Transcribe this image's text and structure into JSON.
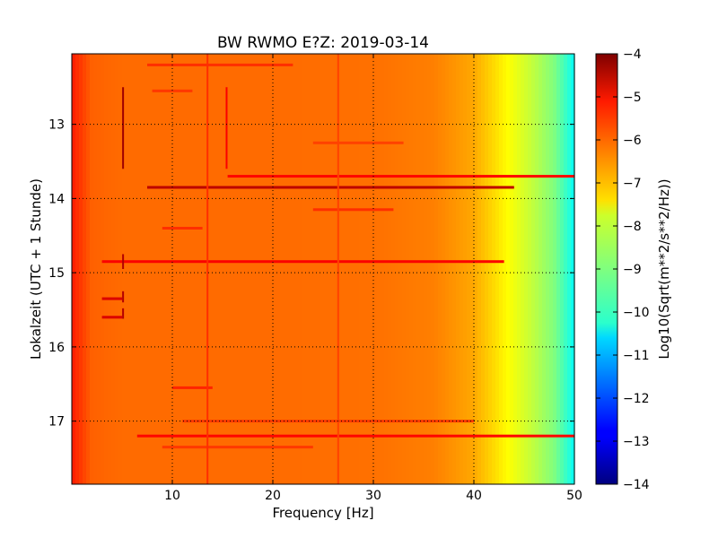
{
  "chart_data": {
    "type": "heatmap",
    "title": "BW RWMO E?Z: 2019-03-14",
    "xlabel": "Frequency [Hz]",
    "ylabel": "Lokalzeit (UTC + 1 Stunde)",
    "xlim": [
      0,
      50
    ],
    "ylim": [
      12.05,
      17.85
    ],
    "y_inverted": true,
    "x_ticks": [
      10,
      20,
      30,
      40,
      50
    ],
    "y_ticks": [
      13,
      14,
      15,
      16,
      17
    ],
    "grid": true,
    "colormap": "jet",
    "colorbar": {
      "label": "Log10(Sqrt(m**2/s**2/Hz))",
      "range": [
        -14,
        -4
      ],
      "ticks": [
        -4,
        -5,
        -6,
        -7,
        -8,
        -9,
        -10,
        -11,
        -12,
        -13,
        -14
      ]
    },
    "background_profile": {
      "frequency": [
        0,
        2,
        5,
        10,
        20,
        30,
        36,
        40,
        42,
        44,
        46,
        48,
        50
      ],
      "level": [
        -5.5,
        -6.2,
        -6.3,
        -6.3,
        -6.3,
        -6.35,
        -6.5,
        -6.9,
        -7.4,
        -7.9,
        -8.4,
        -9.0,
        -10.2
      ]
    },
    "horizontal_features": [
      {
        "time": 12.2,
        "f_start": 7.5,
        "f_end": 22,
        "level": -5.7
      },
      {
        "time": 12.55,
        "f_start": 8,
        "f_end": 12,
        "level": -5.8
      },
      {
        "time": 13.25,
        "f_start": 24,
        "f_end": 33,
        "level": -5.9
      },
      {
        "time": 13.7,
        "f_start": 15.5,
        "f_end": 50,
        "level": -5.3
      },
      {
        "time": 13.85,
        "f_start": 7.5,
        "f_end": 44,
        "level": -4.6
      },
      {
        "time": 14.15,
        "f_start": 24,
        "f_end": 32,
        "level": -5.7
      },
      {
        "time": 14.4,
        "f_start": 9,
        "f_end": 13,
        "level": -5.7
      },
      {
        "time": 14.85,
        "f_start": 3,
        "f_end": 43,
        "level": -5.2
      },
      {
        "time": 15.35,
        "f_start": 3,
        "f_end": 5,
        "level": -4.9
      },
      {
        "time": 15.6,
        "f_start": 3,
        "f_end": 5,
        "level": -4.9
      },
      {
        "time": 16.55,
        "f_start": 10,
        "f_end": 14,
        "level": -5.6
      },
      {
        "time": 17.0,
        "f_start": 11,
        "f_end": 40,
        "level": -5.8
      },
      {
        "time": 17.2,
        "f_start": 6.5,
        "f_end": 50,
        "level": -5.3
      },
      {
        "time": 17.35,
        "f_start": 9,
        "f_end": 24,
        "level": -5.8
      }
    ],
    "vertical_features": [
      {
        "frequency": 5.1,
        "t_start": 12.5,
        "t_end": 13.6,
        "level": -4.3
      },
      {
        "frequency": 5.1,
        "t_start": 14.75,
        "t_end": 14.95,
        "level": -4.5
      },
      {
        "frequency": 5.1,
        "t_start": 15.25,
        "t_end": 15.4,
        "level": -4.5
      },
      {
        "frequency": 5.1,
        "t_start": 15.48,
        "t_end": 15.62,
        "level": -4.5
      },
      {
        "frequency": 13.5,
        "t_start": 12.05,
        "t_end": 17.85,
        "level": -5.7
      },
      {
        "frequency": 15.4,
        "t_start": 12.5,
        "t_end": 13.6,
        "level": -5.2
      },
      {
        "frequency": 26.5,
        "t_start": 12.05,
        "t_end": 17.85,
        "level": -5.9
      }
    ]
  }
}
